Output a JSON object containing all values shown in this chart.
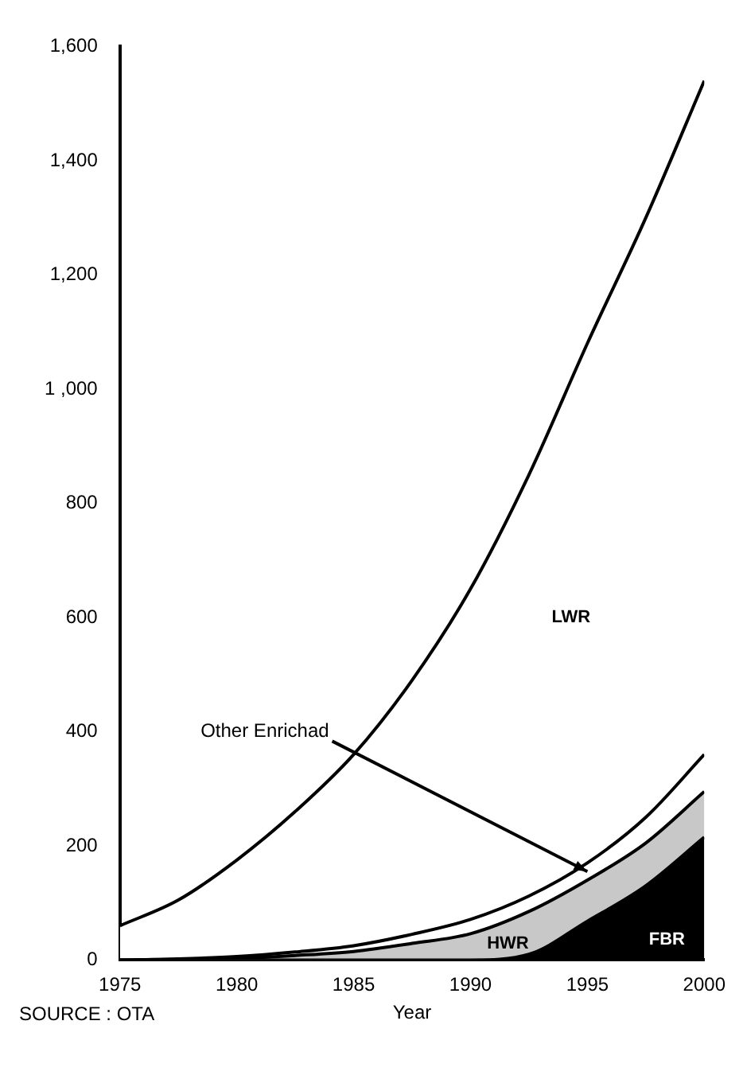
{
  "chart_data": {
    "type": "area",
    "stacked": true,
    "xlabel": "Year",
    "x": [
      1975,
      1977.5,
      1980,
      1982.5,
      1985,
      1987.5,
      1990,
      1992.5,
      1995,
      1997.5,
      2000
    ],
    "series": [
      {
        "name": "FBR",
        "color": "#000000",
        "values": [
          0,
          0,
          0,
          0,
          0,
          0,
          0,
          10,
          68,
          130,
          215
        ]
      },
      {
        "name": "HWR",
        "color": "#c8c8c8",
        "values": [
          0,
          1,
          3,
          8,
          15,
          29,
          46,
          75,
          72,
          75,
          80
        ]
      },
      {
        "name": "Other Enrichad",
        "color": "#ffffff",
        "values": [
          0,
          1,
          3,
          6,
          10,
          16,
          25,
          27,
          30,
          45,
          65
        ]
      },
      {
        "name": "LWR",
        "color": "#ffffff",
        "values": [
          60,
          103,
          169,
          246,
          335,
          445,
          579,
          738,
          910,
          1050,
          1180
        ]
      }
    ],
    "xlim": [
      1975,
      2000
    ],
    "xticks": [
      1975,
      1980,
      1985,
      1990,
      1995,
      2000
    ],
    "ylim": [
      0,
      1600
    ],
    "yticks": [
      0,
      200,
      400,
      600,
      800,
      {
        "value": 1000,
        "label": "1 ,000"
      },
      {
        "value": 1200,
        "label": "1,200"
      },
      {
        "value": 1400,
        "label": "1,400"
      },
      {
        "value": 1600,
        "label": "1,600"
      }
    ],
    "grid": false,
    "legend": false,
    "annotations": [
      "SOURCE : OTA"
    ]
  }
}
